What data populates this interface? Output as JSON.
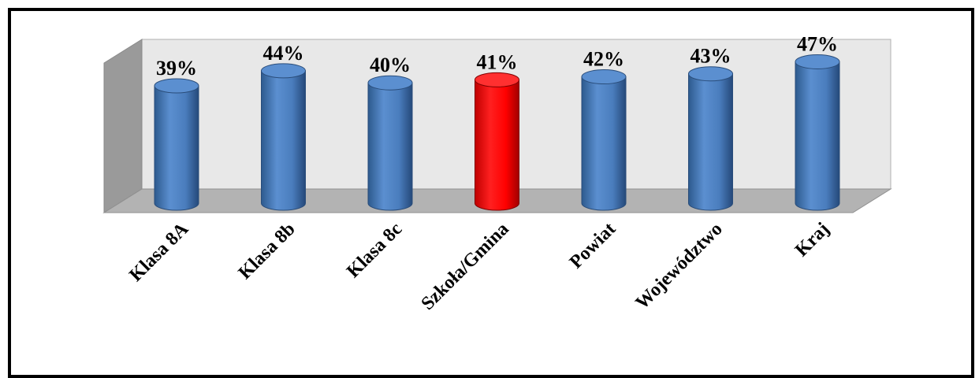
{
  "chart_data": {
    "type": "bar",
    "style": "3d-cylinder",
    "categories": [
      "Klasa 8A",
      "Klasa 8b",
      "Klasa 8c",
      "Szkoła/Gmina",
      "Powiat",
      "Województwo",
      "Kraj"
    ],
    "values": [
      39,
      44,
      40,
      41,
      42,
      43,
      47
    ],
    "value_labels": [
      "39%",
      "44%",
      "40%",
      "41%",
      "42%",
      "43%",
      "47%"
    ],
    "highlight_index": 3,
    "colors": {
      "bar": "#4f81bd",
      "highlight": "#ff0000",
      "wall": "#e8e8e8",
      "floor": "#b3b3b3",
      "side_wall": "#9a9a9a"
    },
    "grid": false,
    "legend": "none"
  }
}
